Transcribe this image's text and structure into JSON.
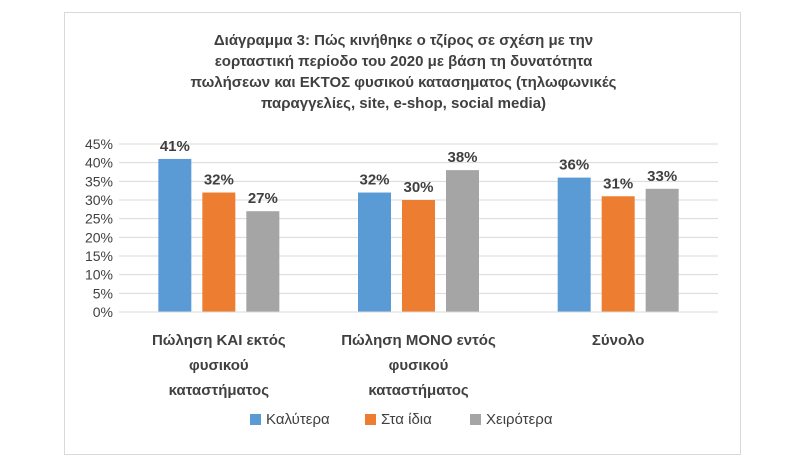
{
  "chart_data": {
    "type": "bar",
    "title_lines": [
      "Διάγραμμα 3: Πώς κινήθηκε ο τζίρος σε σχέση με την",
      "εορταστική περίοδο του 2020 με βάση τη δυνατότητα",
      "πωλήσεων και ΕΚΤΟΣ φυσικού κατασηματος (τηλωφωνικές",
      "παραγγελίες, site, e-shop, social media)"
    ],
    "categories": [
      [
        "Πώληση ΚΑΙ εκτός",
        "φυσικού",
        "καταστήματος"
      ],
      [
        "Πώληση ΜΟΝΟ εντός",
        "φυσικού",
        "καταστήματος"
      ],
      [
        "Σύνολο"
      ]
    ],
    "series": [
      {
        "name": "Καλύτερα",
        "color": "#5b9bd5",
        "values": [
          41,
          32,
          36
        ],
        "labels": [
          "41%",
          "32%",
          "36%"
        ]
      },
      {
        "name": "Στα ίδια",
        "color": "#ed7d31",
        "values": [
          32,
          30,
          31
        ],
        "labels": [
          "32%",
          "30%",
          "31%"
        ]
      },
      {
        "name": "Χειρότερα",
        "color": "#a5a5a5",
        "values": [
          27,
          38,
          33
        ],
        "labels": [
          "27%",
          "38%",
          "33%"
        ]
      }
    ],
    "ylim": [
      0,
      45
    ],
    "y_ticks": [
      "0%",
      "5%",
      "10%",
      "15%",
      "20%",
      "25%",
      "30%",
      "35%",
      "40%",
      "45%"
    ],
    "grid": true,
    "legend_position": "bottom"
  }
}
